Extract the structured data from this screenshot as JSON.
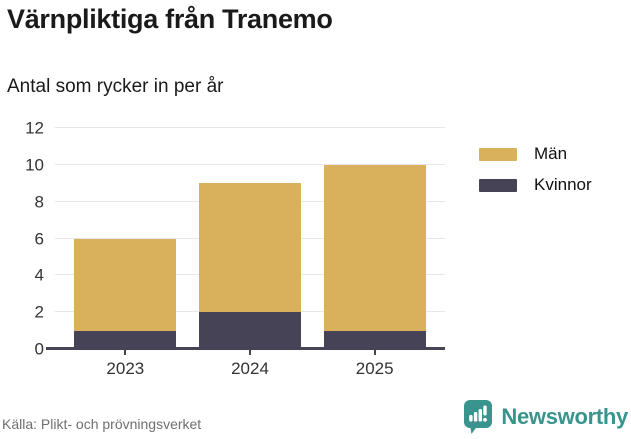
{
  "header": {
    "title": "Värnpliktiga från Tranemo",
    "subtitle": "Antal som rycker in per år"
  },
  "chart_data": {
    "type": "bar",
    "stacked": true,
    "title": "Värnpliktiga från Tranemo",
    "subtitle": "Antal som rycker in per år",
    "categories": [
      "2023",
      "2024",
      "2025"
    ],
    "series": [
      {
        "name": "Män",
        "color": "#D9B05C",
        "values": [
          5,
          7,
          9
        ]
      },
      {
        "name": "Kvinnor",
        "color": "#464357",
        "values": [
          1,
          2,
          1
        ]
      }
    ],
    "totals": [
      6,
      9,
      10
    ],
    "xlabel": "",
    "ylabel": "",
    "ylim": [
      0,
      12
    ],
    "yticks": [
      0,
      2,
      4,
      6,
      8,
      10,
      12
    ],
    "grid": "horizontal",
    "legend_position": "right"
  },
  "footer": {
    "source": "Källa: Plikt- och prövningsverket",
    "brand": "Newsworthy"
  },
  "colors": {
    "men": "#D9B05C",
    "women": "#464357",
    "axis": "#464357",
    "gridline": "#e7e7e8",
    "brand_teal": "#38948C",
    "source_text": "#6f6f6f"
  }
}
